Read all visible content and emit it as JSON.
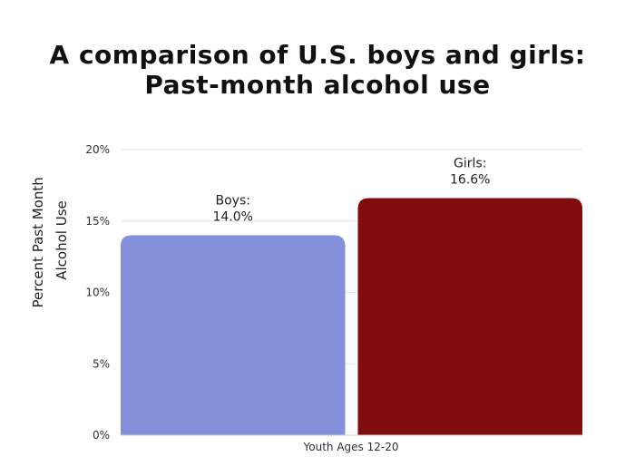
{
  "chart_data": {
    "type": "bar",
    "title_line1": "A comparison of U.S. boys and girls:",
    "title_line2": "Past-month alcohol use",
    "ylabel_line1": "Percent Past Month",
    "ylabel_line2": "Alcohol Use",
    "xlabel": "Youth Ages 12-20",
    "ylim": [
      0,
      20
    ],
    "yticks": [
      0,
      5,
      10,
      15,
      20
    ],
    "ytick_labels": [
      "0%",
      "5%",
      "10%",
      "15%",
      "20%"
    ],
    "grid": true,
    "categories": [
      "Boys",
      "Girls"
    ],
    "values": [
      14.0,
      16.6
    ],
    "label_names": [
      "Boys:",
      "Girls:"
    ],
    "label_values": [
      "14.0%",
      "16.6%"
    ],
    "colors": [
      "#8490d9",
      "#800d0d"
    ]
  }
}
